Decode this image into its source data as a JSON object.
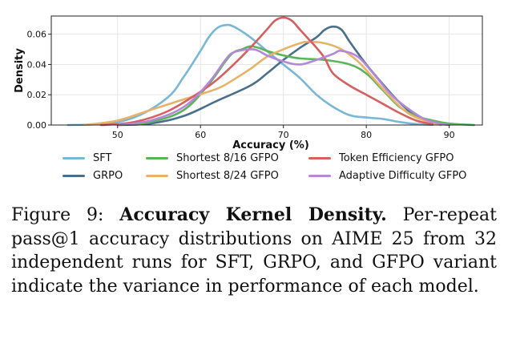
{
  "chart_data": {
    "type": "line",
    "xlabel": "Accuracy (%)",
    "ylabel": "Density",
    "xlim": [
      42,
      94
    ],
    "ylim": [
      0,
      0.072
    ],
    "x_ticks": [
      50,
      60,
      70,
      80,
      90
    ],
    "y_ticks": [
      0.0,
      0.02,
      0.04,
      0.06
    ],
    "y_tick_labels": [
      "0.00",
      "0.02",
      "0.04",
      "0.06"
    ],
    "legend": {
      "placement": "below",
      "entries": [
        "SFT",
        "GRPO",
        "Shortest 8/16 GFPO",
        "Shortest 8/24 GFPO",
        "Token Efficiency GFPO",
        "Adaptive Difficulty GFPO"
      ]
    },
    "series": [
      {
        "name": "SFT",
        "color": "#79b7d6",
        "points": [
          [
            44,
            0
          ],
          [
            48,
            0.0008
          ],
          [
            52,
            0.005
          ],
          [
            56,
            0.018
          ],
          [
            58,
            0.032
          ],
          [
            60,
            0.049
          ],
          [
            61,
            0.058
          ],
          [
            62,
            0.064
          ],
          [
            63,
            0.066
          ],
          [
            64,
            0.065
          ],
          [
            66,
            0.058
          ],
          [
            68,
            0.049
          ],
          [
            70,
            0.04
          ],
          [
            72,
            0.031
          ],
          [
            74,
            0.02
          ],
          [
            76,
            0.012
          ],
          [
            78,
            0.0065
          ],
          [
            80,
            0.005
          ],
          [
            82,
            0.004
          ],
          [
            84,
            0.002
          ],
          [
            86,
            0.0007
          ],
          [
            88,
            0.0001
          ]
        ]
      },
      {
        "name": "GRPO",
        "color": "#4a6f8a",
        "points": [
          [
            50,
            0
          ],
          [
            54,
            0.001
          ],
          [
            58,
            0.006
          ],
          [
            62,
            0.016
          ],
          [
            66,
            0.026
          ],
          [
            68,
            0.034
          ],
          [
            70,
            0.043
          ],
          [
            72,
            0.051
          ],
          [
            74,
            0.058
          ],
          [
            75,
            0.063
          ],
          [
            76,
            0.065
          ],
          [
            77,
            0.063
          ],
          [
            78,
            0.055
          ],
          [
            80,
            0.04
          ],
          [
            82,
            0.027
          ],
          [
            84,
            0.015
          ],
          [
            86,
            0.006
          ],
          [
            88,
            0.002
          ],
          [
            90,
            0.0002
          ]
        ]
      },
      {
        "name": "Shortest 8/16 GFPO",
        "color": "#5ab55a",
        "points": [
          [
            50,
            0
          ],
          [
            54,
            0.002
          ],
          [
            58,
            0.01
          ],
          [
            61,
            0.027
          ],
          [
            63,
            0.042
          ],
          [
            64,
            0.048
          ],
          [
            65,
            0.05
          ],
          [
            66,
            0.052
          ],
          [
            67,
            0.051
          ],
          [
            68,
            0.049
          ],
          [
            70,
            0.046
          ],
          [
            72,
            0.044
          ],
          [
            75,
            0.043
          ],
          [
            78,
            0.04
          ],
          [
            80,
            0.034
          ],
          [
            82,
            0.023
          ],
          [
            84,
            0.012
          ],
          [
            86,
            0.006
          ],
          [
            88,
            0.003
          ],
          [
            90,
            0.001
          ],
          [
            93,
            0
          ]
        ]
      },
      {
        "name": "Shortest 8/24 GFPO",
        "color": "#e7b26a",
        "points": [
          [
            46,
            0
          ],
          [
            50,
            0.003
          ],
          [
            54,
            0.01
          ],
          [
            58,
            0.017
          ],
          [
            62,
            0.024
          ],
          [
            64,
            0.03
          ],
          [
            66,
            0.037
          ],
          [
            68,
            0.045
          ],
          [
            70,
            0.05
          ],
          [
            72,
            0.054
          ],
          [
            73,
            0.055
          ],
          [
            75,
            0.054
          ],
          [
            77,
            0.05
          ],
          [
            79,
            0.042
          ],
          [
            81,
            0.03
          ],
          [
            83,
            0.018
          ],
          [
            85,
            0.008
          ],
          [
            87,
            0.003
          ],
          [
            89,
            0
          ]
        ]
      },
      {
        "name": "Token Efficiency GFPO",
        "color": "#d65f5f",
        "points": [
          [
            48,
            0
          ],
          [
            52,
            0.002
          ],
          [
            56,
            0.009
          ],
          [
            60,
            0.022
          ],
          [
            62,
            0.03
          ],
          [
            64,
            0.04
          ],
          [
            66,
            0.051
          ],
          [
            68,
            0.063
          ],
          [
            69,
            0.069
          ],
          [
            70,
            0.071
          ],
          [
            71,
            0.069
          ],
          [
            72,
            0.063
          ],
          [
            73,
            0.057
          ],
          [
            74,
            0.051
          ],
          [
            75,
            0.044
          ],
          [
            76,
            0.034
          ],
          [
            78,
            0.026
          ],
          [
            80,
            0.02
          ],
          [
            82,
            0.014
          ],
          [
            84,
            0.008
          ],
          [
            86,
            0.003
          ],
          [
            88,
            0.0005
          ]
        ]
      },
      {
        "name": "Adaptive Difficulty GFPO",
        "color": "#b487d8",
        "points": [
          [
            50,
            0
          ],
          [
            54,
            0.003
          ],
          [
            58,
            0.012
          ],
          [
            61,
            0.028
          ],
          [
            63,
            0.043
          ],
          [
            64,
            0.048
          ],
          [
            66,
            0.05
          ],
          [
            67,
            0.049
          ],
          [
            68,
            0.046
          ],
          [
            70,
            0.042
          ],
          [
            72,
            0.04
          ],
          [
            74,
            0.043
          ],
          [
            76,
            0.047
          ],
          [
            77,
            0.049
          ],
          [
            79,
            0.045
          ],
          [
            81,
            0.033
          ],
          [
            83,
            0.02
          ],
          [
            85,
            0.011
          ],
          [
            87,
            0.004
          ],
          [
            89,
            0.0008
          ],
          [
            90,
            0
          ]
        ]
      }
    ]
  },
  "caption": {
    "label": "Figure 9:",
    "bold_title": "Accuracy Kernel Density.",
    "text": "Per-repeat pass@1 accuracy distributions on AIME 25 from 32 independent runs for SFT, GRPO, and GFPO variant indicate the variance in performance of each model."
  }
}
